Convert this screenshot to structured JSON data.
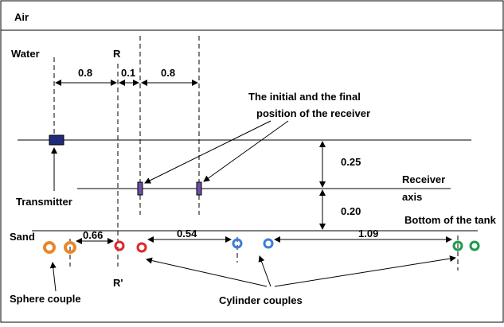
{
  "medium_top": "Air",
  "medium_bottom": "Sand",
  "water_label": "Water",
  "line_r_top": "R",
  "line_r_bottom": "R'",
  "distances": {
    "water_to_r": "0.8",
    "r_to_initial": "0.1",
    "initial_to_final": "0.8",
    "transmitter_to_receiver_axis": "0.25",
    "receiver_axis_to_bottom": "0.20",
    "sphere_to_cylinder": "0.66",
    "cylinder_to_cylinder": "0.54",
    "cylinder_to_cylinder_2": "1.09"
  },
  "receiver_note": [
    "The initial and the final",
    "position of the receiver"
  ],
  "transmitter_label": "Transmitter",
  "receiver_axis_label": [
    "Receiver",
    "axis"
  ],
  "tank_bottom_label": "Bottom of the tank",
  "sphere_label": "Sphere couple",
  "cylinder_label": "Cylinder couples"
}
